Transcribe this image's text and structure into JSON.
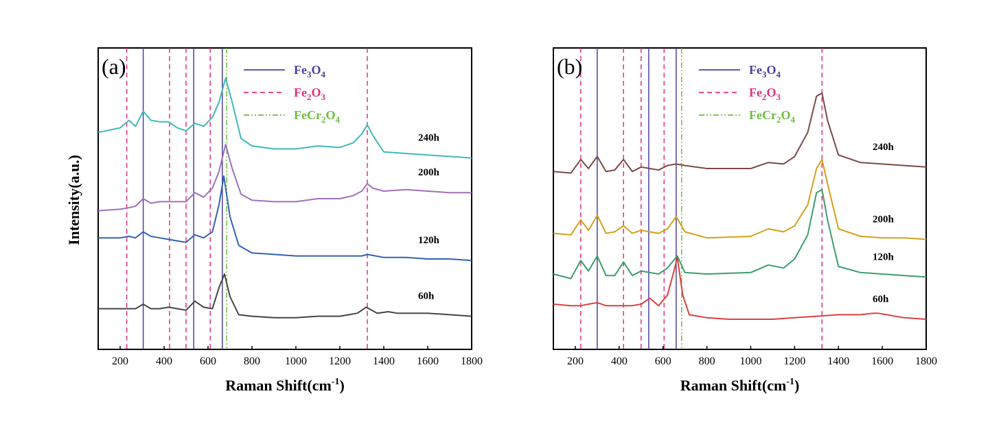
{
  "figure": {
    "ylabel": "Intensity(a.u.)"
  },
  "colors": {
    "fe3o4": "#4b3f9e",
    "fe2o3": "#e0307f",
    "fecr2o4": "#6abf3c",
    "axis": "#000000"
  },
  "chart_data": [
    {
      "type": "line",
      "panel_label": "(a)",
      "xlabel": "Raman Shift(cm-1)",
      "xlabel_parts": {
        "main": "Raman Shift(cm",
        "sup": "-1",
        "close": ")"
      },
      "xlim": [
        100,
        1800
      ],
      "xticks": [
        200,
        400,
        600,
        800,
        1000,
        1200,
        1400,
        1600,
        1800
      ],
      "legend": [
        {
          "label": "Fe3O4",
          "base": "Fe",
          "sub1": "3",
          "mid": "O",
          "sub2": "4",
          "color": "#4b3f9e",
          "style": "solid"
        },
        {
          "label": "Fe2O3",
          "base": "Fe",
          "sub1": "2",
          "mid": "O",
          "sub2": "3",
          "color": "#e0307f",
          "style": "dashed"
        },
        {
          "label": "FeCr2O4",
          "base": "FeCr",
          "sub1": "2",
          "mid": "O",
          "sub2": "4",
          "color": "#6abf3c",
          "style": "dashdot"
        }
      ],
      "reference_lines": {
        "Fe3O4": [
          305,
          535,
          665
        ],
        "Fe2O3": [
          230,
          425,
          500,
          610,
          1325
        ],
        "FeCr2O4": [
          685
        ]
      },
      "series": [
        {
          "name": "240h",
          "color": "#3fb9b9",
          "x": [
            100,
            200,
            240,
            270,
            305,
            340,
            380,
            420,
            460,
            500,
            540,
            580,
            620,
            650,
            680,
            710,
            750,
            800,
            900,
            1000,
            1100,
            1200,
            1260,
            1300,
            1325,
            1350,
            1400,
            1500,
            1600,
            1700,
            1800
          ],
          "y": [
            0.72,
            0.735,
            0.76,
            0.74,
            0.79,
            0.76,
            0.755,
            0.755,
            0.735,
            0.725,
            0.75,
            0.74,
            0.77,
            0.82,
            0.9,
            0.82,
            0.7,
            0.675,
            0.665,
            0.665,
            0.675,
            0.67,
            0.685,
            0.715,
            0.745,
            0.71,
            0.655,
            0.65,
            0.645,
            0.64,
            0.635
          ]
        },
        {
          "name": "200h",
          "color": "#a070b8",
          "x": [
            100,
            200,
            240,
            270,
            305,
            340,
            380,
            420,
            460,
            500,
            540,
            580,
            620,
            650,
            680,
            710,
            750,
            800,
            900,
            1000,
            1100,
            1200,
            1260,
            1300,
            1325,
            1350,
            1400,
            1500,
            1600,
            1700,
            1800
          ],
          "y": [
            0.46,
            0.465,
            0.47,
            0.475,
            0.5,
            0.485,
            0.49,
            0.49,
            0.49,
            0.49,
            0.52,
            0.505,
            0.535,
            0.59,
            0.68,
            0.6,
            0.515,
            0.495,
            0.49,
            0.49,
            0.5,
            0.5,
            0.51,
            0.525,
            0.55,
            0.535,
            0.525,
            0.53,
            0.525,
            0.52,
            0.52
          ]
        },
        {
          "name": "120h",
          "color": "#2f62b4",
          "x": [
            100,
            200,
            240,
            270,
            305,
            340,
            380,
            420,
            460,
            500,
            540,
            580,
            620,
            650,
            672,
            700,
            740,
            800,
            900,
            1000,
            1100,
            1200,
            1300,
            1325,
            1400,
            1500,
            1600,
            1700,
            1800
          ],
          "y": [
            0.37,
            0.37,
            0.375,
            0.37,
            0.39,
            0.375,
            0.37,
            0.365,
            0.36,
            0.355,
            0.38,
            0.37,
            0.39,
            0.48,
            0.575,
            0.44,
            0.345,
            0.32,
            0.315,
            0.31,
            0.31,
            0.31,
            0.31,
            0.315,
            0.305,
            0.305,
            0.3,
            0.3,
            0.295
          ]
        },
        {
          "name": "60h",
          "color": "#444444",
          "x": [
            100,
            200,
            240,
            270,
            305,
            340,
            380,
            420,
            460,
            500,
            540,
            580,
            620,
            650,
            675,
            700,
            740,
            800,
            900,
            1000,
            1100,
            1200,
            1280,
            1320,
            1370,
            1420,
            1460,
            1520,
            1600,
            1700,
            1800
          ],
          "y": [
            0.135,
            0.135,
            0.135,
            0.135,
            0.15,
            0.135,
            0.135,
            0.14,
            0.135,
            0.13,
            0.16,
            0.14,
            0.135,
            0.205,
            0.25,
            0.175,
            0.115,
            0.11,
            0.105,
            0.105,
            0.11,
            0.11,
            0.12,
            0.14,
            0.12,
            0.125,
            0.12,
            0.12,
            0.12,
            0.115,
            0.11
          ]
        }
      ]
    },
    {
      "type": "line",
      "panel_label": "(b)",
      "xlabel": "Raman Shift(cm-1)",
      "xlabel_parts": {
        "main": "Raman Shift(cm",
        "sup": "-1",
        "close": ")"
      },
      "xlim": [
        100,
        1800
      ],
      "xticks": [
        200,
        400,
        600,
        800,
        1000,
        1200,
        1400,
        1600,
        1800
      ],
      "legend": [
        {
          "label": "Fe3O4",
          "base": "Fe",
          "sub1": "3",
          "mid": "O",
          "sub2": "4",
          "color": "#4b3f9e",
          "style": "solid"
        },
        {
          "label": "Fe2O3",
          "base": "Fe",
          "sub1": "2",
          "mid": "O",
          "sub2": "3",
          "color": "#e0307f",
          "style": "dashed"
        },
        {
          "label": "FeCr2O4",
          "base": "FeCr",
          "sub1": "2",
          "mid": "O",
          "sub2": "4",
          "color": "#6abf3c",
          "style": "dashdot"
        }
      ],
      "reference_lines": {
        "Fe3O4": [
          300,
          535,
          660
        ],
        "Fe2O3": [
          225,
          420,
          500,
          605,
          1325
        ],
        "FeCr2O4": [
          685
        ]
      },
      "series": [
        {
          "name": "240h",
          "color": "#7a4a45",
          "x": [
            100,
            180,
            225,
            260,
            300,
            340,
            380,
            420,
            460,
            500,
            540,
            580,
            620,
            660,
            700,
            800,
            1000,
            1080,
            1150,
            1200,
            1260,
            1300,
            1325,
            1350,
            1400,
            1500,
            1600,
            1700,
            1800
          ],
          "y": [
            0.59,
            0.585,
            0.63,
            0.6,
            0.64,
            0.59,
            0.595,
            0.63,
            0.59,
            0.605,
            0.6,
            0.595,
            0.61,
            0.615,
            0.61,
            0.6,
            0.6,
            0.62,
            0.615,
            0.64,
            0.72,
            0.84,
            0.85,
            0.76,
            0.645,
            0.62,
            0.615,
            0.61,
            0.605
          ]
        },
        {
          "name": "200h",
          "color": "#d4a017",
          "x": [
            100,
            180,
            225,
            260,
            300,
            340,
            380,
            420,
            460,
            500,
            540,
            580,
            620,
            660,
            700,
            800,
            1000,
            1080,
            1150,
            1200,
            1260,
            1300,
            1325,
            1350,
            1400,
            1500,
            1600,
            1700,
            1800
          ],
          "y": [
            0.385,
            0.38,
            0.43,
            0.395,
            0.445,
            0.385,
            0.39,
            0.41,
            0.385,
            0.395,
            0.39,
            0.385,
            0.4,
            0.44,
            0.39,
            0.37,
            0.375,
            0.4,
            0.39,
            0.41,
            0.48,
            0.6,
            0.63,
            0.55,
            0.4,
            0.375,
            0.37,
            0.37,
            0.365
          ]
        },
        {
          "name": "120h",
          "color": "#3a9e6a",
          "x": [
            100,
            180,
            225,
            260,
            300,
            340,
            380,
            420,
            460,
            500,
            540,
            580,
            620,
            665,
            700,
            800,
            1000,
            1080,
            1150,
            1200,
            1260,
            1300,
            1325,
            1350,
            1400,
            1500,
            1600,
            1700,
            1800
          ],
          "y": [
            0.25,
            0.235,
            0.295,
            0.26,
            0.31,
            0.245,
            0.245,
            0.29,
            0.245,
            0.26,
            0.255,
            0.25,
            0.27,
            0.31,
            0.255,
            0.25,
            0.255,
            0.28,
            0.27,
            0.3,
            0.38,
            0.52,
            0.53,
            0.43,
            0.275,
            0.255,
            0.25,
            0.245,
            0.24
          ]
        },
        {
          "name": "60h",
          "color": "#d9413e",
          "x": [
            100,
            180,
            225,
            260,
            300,
            340,
            380,
            420,
            460,
            500,
            540,
            580,
            620,
            650,
            665,
            690,
            720,
            800,
            900,
            1000,
            1100,
            1200,
            1300,
            1400,
            1500,
            1560,
            1580,
            1620,
            1700,
            1800
          ],
          "y": [
            0.15,
            0.145,
            0.145,
            0.15,
            0.155,
            0.145,
            0.145,
            0.145,
            0.145,
            0.15,
            0.17,
            0.145,
            0.18,
            0.26,
            0.305,
            0.18,
            0.115,
            0.105,
            0.1,
            0.1,
            0.1,
            0.105,
            0.11,
            0.115,
            0.115,
            0.12,
            0.12,
            0.115,
            0.105,
            0.1
          ]
        }
      ]
    }
  ]
}
